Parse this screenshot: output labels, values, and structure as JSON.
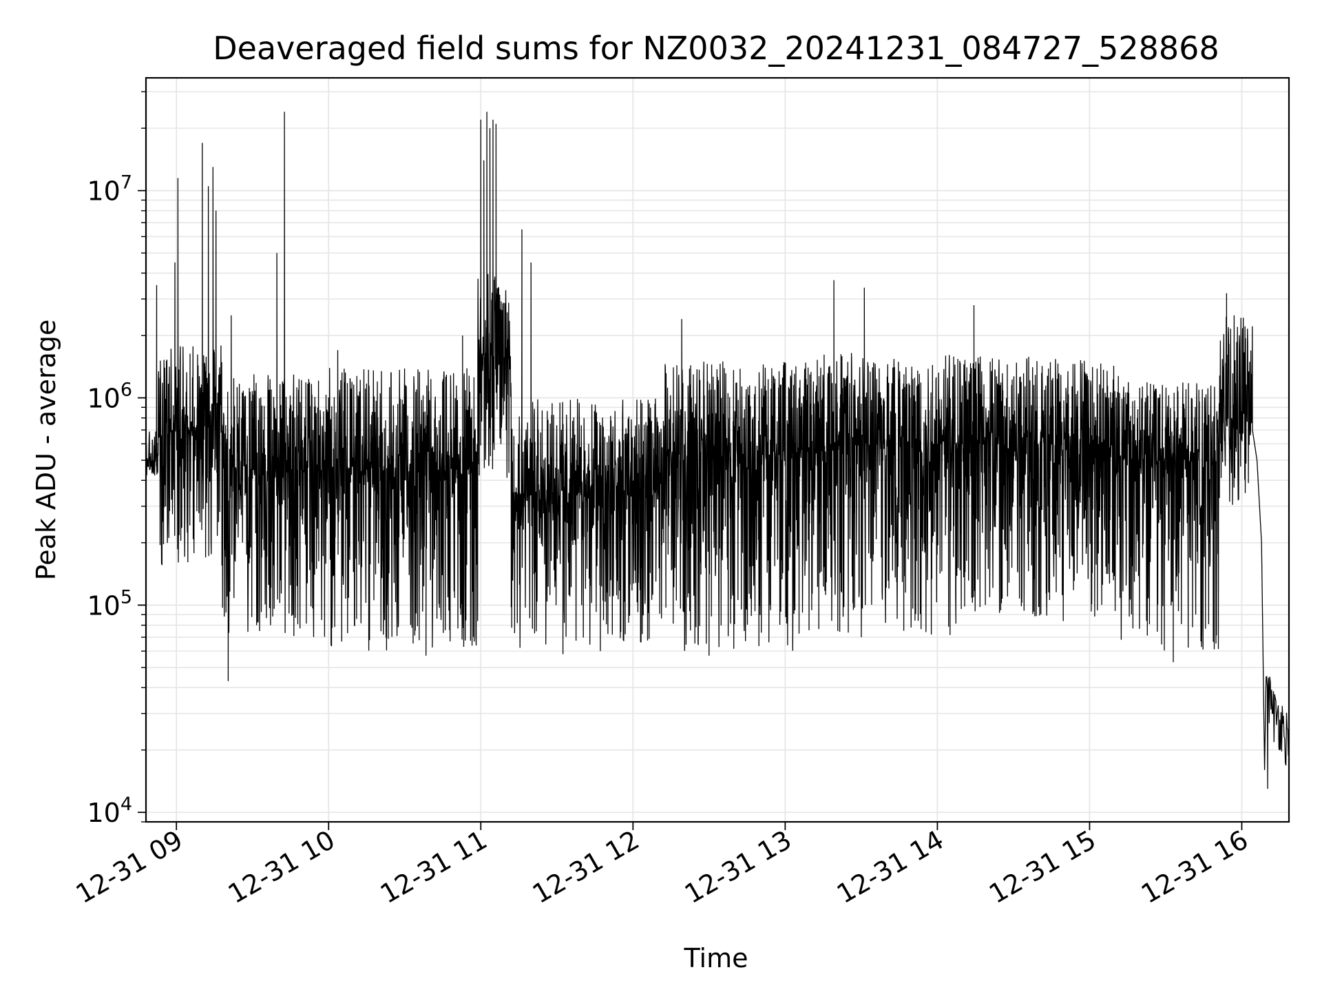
{
  "chart_data": {
    "type": "line",
    "title": "Deaveraged field sums for NZ0032_20241231_084727_528868",
    "xlabel": "Time",
    "ylabel": "Peak ADU - average",
    "yscale": "log",
    "xlim_hours": [
      8.8,
      16.31
    ],
    "ylim": [
      9000,
      35000000
    ],
    "grid": true,
    "line_color": "#000000",
    "grid_color": "#e6e6e6",
    "x_ticks": [
      {
        "value": 9,
        "label": "12-31 09"
      },
      {
        "value": 10,
        "label": "12-31 10"
      },
      {
        "value": 11,
        "label": "12-31 11"
      },
      {
        "value": 12,
        "label": "12-31 12"
      },
      {
        "value": 13,
        "label": "12-31 13"
      },
      {
        "value": 14,
        "label": "12-31 14"
      },
      {
        "value": 15,
        "label": "12-31 15"
      },
      {
        "value": 16,
        "label": "12-31 16"
      }
    ],
    "y_ticks": [
      {
        "value": 10000,
        "base": "10",
        "exp": "4"
      },
      {
        "value": 100000,
        "base": "10",
        "exp": "5"
      },
      {
        "value": 1000000,
        "base": "10",
        "exp": "6"
      },
      {
        "value": 10000000,
        "base": "10",
        "exp": "7"
      }
    ],
    "series": [
      {
        "name": "Peak ADU - average",
        "segments": [
          {
            "t0": 8.8,
            "t1": 8.88,
            "median": 500000,
            "low": 420000,
            "high": 700000
          },
          {
            "t0": 8.88,
            "t1": 9.3,
            "median": 700000,
            "low": 150000,
            "high": 1800000
          },
          {
            "t0": 9.3,
            "t1": 10.0,
            "median": 450000,
            "low": 70000,
            "high": 1300000
          },
          {
            "t0": 10.0,
            "t1": 10.98,
            "median": 450000,
            "low": 60000,
            "high": 1400000
          },
          {
            "t0": 10.98,
            "t1": 11.2,
            "median": 1600000,
            "low": 400000,
            "high": 4000000
          },
          {
            "t0": 11.2,
            "t1": 12.2,
            "median": 350000,
            "low": 60000,
            "high": 1000000
          },
          {
            "t0": 12.2,
            "t1": 13.2,
            "median": 550000,
            "low": 60000,
            "high": 1500000
          },
          {
            "t0": 13.2,
            "t1": 14.2,
            "median": 600000,
            "low": 70000,
            "high": 1700000
          },
          {
            "t0": 14.2,
            "t1": 15.2,
            "median": 600000,
            "low": 80000,
            "high": 1600000
          },
          {
            "t0": 15.2,
            "t1": 15.85,
            "median": 500000,
            "low": 60000,
            "high": 1200000
          },
          {
            "t0": 15.85,
            "t1": 16.07,
            "median": 800000,
            "low": 300000,
            "high": 2500000
          }
        ],
        "tail": [
          {
            "t": 16.07,
            "v": 700000
          },
          {
            "t": 16.1,
            "v": 500000
          },
          {
            "t": 16.13,
            "v": 200000
          },
          {
            "t": 16.16,
            "v": 45000
          },
          {
            "t": 16.2,
            "v": 30000
          },
          {
            "t": 16.25,
            "v": 28000
          },
          {
            "t": 16.31,
            "v": 22000
          }
        ],
        "spikes": [
          {
            "t": 8.87,
            "v": 3500000
          },
          {
            "t": 8.99,
            "v": 4500000
          },
          {
            "t": 9.01,
            "v": 11500000
          },
          {
            "t": 9.17,
            "v": 17000000
          },
          {
            "t": 9.21,
            "v": 10500000
          },
          {
            "t": 9.24,
            "v": 13000000
          },
          {
            "t": 9.26,
            "v": 8000000
          },
          {
            "t": 9.36,
            "v": 2500000
          },
          {
            "t": 9.66,
            "v": 5000000
          },
          {
            "t": 9.71,
            "v": 24000000
          },
          {
            "t": 10.06,
            "v": 1700000
          },
          {
            "t": 10.88,
            "v": 2000000
          },
          {
            "t": 11.0,
            "v": 22000000
          },
          {
            "t": 11.02,
            "v": 14000000
          },
          {
            "t": 11.04,
            "v": 24000000
          },
          {
            "t": 11.06,
            "v": 20000000
          },
          {
            "t": 11.08,
            "v": 22000000
          },
          {
            "t": 11.1,
            "v": 21000000
          },
          {
            "t": 11.27,
            "v": 6500000
          },
          {
            "t": 11.33,
            "v": 4500000
          },
          {
            "t": 12.32,
            "v": 2400000
          },
          {
            "t": 13.32,
            "v": 3700000
          },
          {
            "t": 13.52,
            "v": 3400000
          },
          {
            "t": 14.24,
            "v": 2800000
          },
          {
            "t": 15.9,
            "v": 3200000
          },
          {
            "t": 15.95,
            "v": 2500000
          }
        ],
        "dips": [
          {
            "t": 9.34,
            "v": 43000
          },
          {
            "t": 10.64,
            "v": 57000
          },
          {
            "t": 11.54,
            "v": 58000
          },
          {
            "t": 12.5,
            "v": 57000
          },
          {
            "t": 13.5,
            "v": 70000
          },
          {
            "t": 15.55,
            "v": 53000
          },
          {
            "t": 16.15,
            "v": 16000
          },
          {
            "t": 16.17,
            "v": 13000
          }
        ]
      }
    ]
  }
}
